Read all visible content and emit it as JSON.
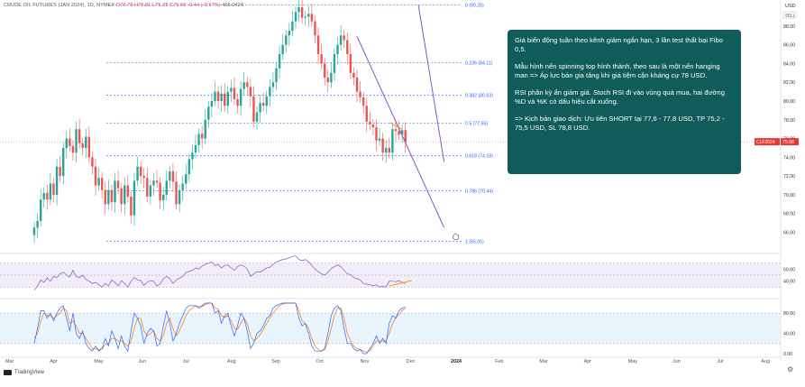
{
  "header": {
    "instrument": "CRUDE OIL FUTURES (JAN 2024), 1D, NYMEX",
    "quote": "O76.79 H76.81 L75.35 C75.66 -0.44 (-0.57%)",
    "extra": "465.0424",
    "currency": "USD",
    "sell_badge": "SELL"
  },
  "callout": {
    "p1": "Giá biến động tuần theo kênh giảm ngắn hạn, 3 lần test thất bại Fibo 0,5.",
    "p2": "Mẫu hình nến spinning top hình thành, theo sau là một nến hanging man => Áp lực bán gia tăng khi giá tiệm cận kháng cự 78 USD.",
    "p3": "RSI phân kỳ ẩn giảm giá. Stoch RSI đi vào vùng quá mua, hai đường %D và %K có dấu hiệu cắt xuống.",
    "p4": "=> Kịch bản giao dịch: Ưu tiên SHORT tại 77,6 - 77,8 USD, TP 75,2 - 75,5 USD, SL 78,8 USD."
  },
  "footer": {
    "brand": "TradingView"
  },
  "chart_data": {
    "type": "candlestick",
    "x_labels": [
      "Mar",
      "Apr",
      "May",
      "Jun",
      "Jul",
      "Aug",
      "Sep",
      "Oct",
      "Nov",
      "Dec",
      "2024",
      "Feb",
      "Mar",
      "Apr",
      "May",
      "Jun",
      "Jul",
      "Aug"
    ],
    "price_axis": {
      "ticks": [
        88.0,
        86.0,
        84.0,
        82.0,
        80.0,
        78.0,
        76.0,
        74.0,
        72.0,
        70.0,
        68.0,
        66.0
      ],
      "range": [
        64.7,
        90.3
      ]
    },
    "current_price_label": {
      "symbol": "CLF2024",
      "value": "75.66",
      "price": 75.66,
      "color": "#e53935"
    },
    "fib_levels": [
      {
        "label": "0 (90.26)",
        "price": 90.26
      },
      {
        "label": "0.236 (84.11)",
        "price": 84.11
      },
      {
        "label": "0.382 (80.63)",
        "price": 80.63
      },
      {
        "label": "0.5 (77.65)",
        "price": 77.65
      },
      {
        "label": "0.618 (74.18)",
        "price": 74.18
      },
      {
        "label": "0.786 (70.44)",
        "price": 70.44
      },
      {
        "label": "1 (65.05)",
        "price": 65.05
      }
    ],
    "price_series": [
      66.5,
      67.2,
      69.5,
      70.2,
      69.5,
      71.2,
      70.0,
      73.0,
      72.0,
      75.0,
      76.0,
      75.2,
      74.5,
      77.0,
      75.5,
      75.0,
      76.2,
      74.0,
      73.0,
      71.0,
      71.8,
      70.5,
      69.0,
      70.5,
      69.2,
      71.5,
      70.7,
      69.0,
      71.0,
      69.8,
      67.8,
      71.5,
      73.0,
      72.0,
      71.8,
      69.8,
      71.0,
      71.5,
      71.3,
      69.4,
      70.0,
      71.5,
      72.5,
      71.4,
      69.0,
      70.5,
      71.2,
      72.2,
      73.8,
      74.5,
      75.3,
      76.5,
      76.0,
      78.0,
      79.4,
      80.0,
      81.0,
      80.0,
      80.8,
      79.5,
      81.0,
      81.4,
      80.2,
      79.5,
      81.3,
      82.0,
      81.5,
      80.5,
      77.8,
      78.8,
      79.8,
      79.5,
      80.5,
      81.5,
      82.0,
      83.5,
      85.0,
      86.0,
      87.0,
      87.5,
      88.5,
      89.5,
      90.0,
      88.9,
      89.0,
      89.3,
      88.5,
      87.0,
      85.0,
      84.0,
      82.5,
      82.0,
      83.0,
      85.0,
      86.0,
      87.0,
      86.5,
      85.0,
      83.0,
      82.5,
      81.0,
      80.4,
      79.5,
      77.8,
      77.5,
      77.2,
      75.8,
      76.0,
      74.5,
      75.0,
      74.5,
      77.0,
      76.8,
      76.4,
      76.9,
      75.6
    ],
    "channel": {
      "upper": [
        {
          "x": 119,
          "price": 90.3
        },
        {
          "x": 127,
          "price": 73.5
        }
      ],
      "lower": [
        {
          "x": 100,
          "price": 86.9
        },
        {
          "x": 127,
          "price": 66.5
        }
      ]
    },
    "rsi": {
      "levels": [
        70,
        50,
        30
      ],
      "tick_labels": [
        "60.00",
        "40.00"
      ],
      "values": [
        25,
        32,
        42,
        38,
        45,
        40,
        48,
        46,
        52,
        55,
        50,
        47,
        58,
        48,
        46,
        50,
        43,
        40,
        36,
        38,
        34,
        30,
        36,
        32,
        42,
        38,
        32,
        41,
        36,
        30,
        40,
        46,
        42,
        41,
        33,
        38,
        41,
        40,
        32,
        35,
        44,
        48,
        44,
        36,
        42,
        45,
        48,
        54,
        56,
        58,
        62,
        60,
        65,
        68,
        70,
        72,
        66,
        68,
        62,
        66,
        67,
        62,
        58,
        64,
        67,
        65,
        60,
        48,
        52,
        56,
        55,
        58,
        62,
        63,
        68,
        72,
        74,
        76,
        77,
        79,
        81,
        82,
        76,
        74,
        76,
        72,
        66,
        60,
        56,
        52,
        50,
        55,
        61,
        64,
        67,
        64,
        58,
        52,
        51,
        46,
        44,
        42,
        36,
        35,
        34,
        32,
        34,
        30,
        32,
        30,
        40,
        40,
        39,
        41,
        38,
        36
      ]
    },
    "stoch_rsi": {
      "levels": [
        80,
        20
      ],
      "tick_labels": [
        "80.00",
        "40.00",
        "0.00"
      ],
      "k": [
        20,
        50,
        85,
        85,
        70,
        80,
        65,
        80,
        90,
        95,
        70,
        45,
        80,
        40,
        30,
        45,
        20,
        10,
        5,
        15,
        5,
        10,
        30,
        15,
        45,
        30,
        10,
        35,
        15,
        5,
        45,
        80,
        70,
        55,
        20,
        40,
        50,
        45,
        15,
        20,
        55,
        85,
        60,
        25,
        40,
        60,
        75,
        90,
        95,
        95,
        95,
        90,
        95,
        100,
        100,
        100,
        80,
        85,
        60,
        75,
        80,
        55,
        35,
        55,
        80,
        70,
        45,
        10,
        20,
        40,
        45,
        55,
        70,
        75,
        90,
        95,
        98,
        100,
        100,
        100,
        100,
        100,
        70,
        55,
        60,
        40,
        15,
        5,
        5,
        5,
        10,
        40,
        75,
        90,
        95,
        85,
        50,
        20,
        20,
        10,
        5,
        8,
        0,
        0,
        10,
        20,
        35,
        20,
        30,
        20,
        60,
        75,
        70,
        85,
        90,
        92
      ],
      "d": [
        30,
        40,
        65,
        80,
        75,
        75,
        70,
        75,
        80,
        90,
        85,
        60,
        65,
        55,
        40,
        40,
        30,
        20,
        10,
        10,
        8,
        10,
        18,
        20,
        30,
        30,
        25,
        25,
        20,
        15,
        25,
        50,
        70,
        70,
        45,
        35,
        40,
        45,
        30,
        25,
        35,
        60,
        70,
        50,
        35,
        45,
        60,
        75,
        85,
        90,
        95,
        93,
        93,
        97,
        100,
        100,
        90,
        88,
        75,
        72,
        75,
        65,
        50,
        48,
        60,
        70,
        60,
        35,
        25,
        30,
        38,
        48,
        60,
        70,
        80,
        88,
        95,
        98,
        100,
        100,
        100,
        100,
        85,
        65,
        60,
        50,
        30,
        15,
        8,
        5,
        8,
        25,
        50,
        75,
        90,
        90,
        70,
        40,
        25,
        15,
        10,
        8,
        5,
        3,
        6,
        15,
        25,
        25,
        25,
        25,
        40,
        60,
        70,
        78,
        85,
        90
      ]
    },
    "colors": {
      "up": "#26a69a",
      "down": "#ef5350",
      "channel": "#7e57c2",
      "fib": "#2962ff",
      "rsi": "#7e57c2",
      "stoch_k": "#2962ff",
      "stoch_d": "#ff6d00"
    }
  }
}
